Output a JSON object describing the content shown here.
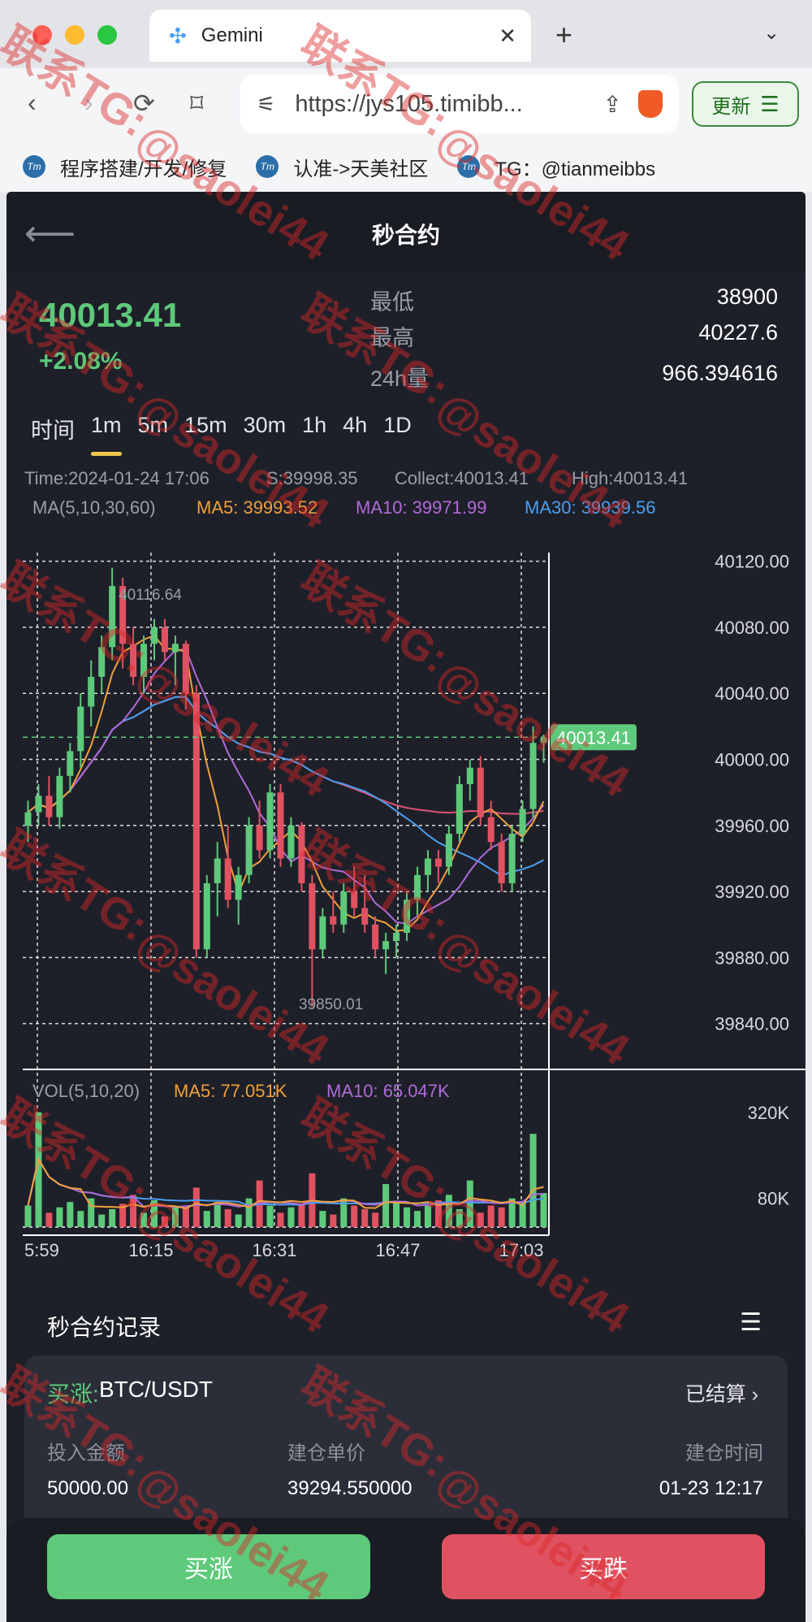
{
  "browser": {
    "tab_title": "Gemini",
    "url": "https://jys105.timibb...",
    "update_label": "更新",
    "bookmarks": [
      "程序搭建/开发/修复",
      "认准->天美社区",
      "TG：@tianmeibbs"
    ]
  },
  "header": {
    "title": "秒合约"
  },
  "ticker": {
    "price": "40013.41",
    "change": "+2.08%",
    "stats": [
      {
        "label": "最低",
        "value": "38900"
      },
      {
        "label": "最高",
        "value": "40227.6"
      },
      {
        "label": "24h量",
        "value": "966.394616"
      }
    ]
  },
  "intervals": [
    "时间",
    "1m",
    "5m",
    "15m",
    "30m",
    "1h",
    "4h",
    "1D"
  ],
  "active_interval": "1m",
  "chart_info": {
    "time": "Time:2024-01-24 17:06",
    "s": "S:39998.35",
    "collect": "Collect:40013.41",
    "high": "High:40013.41",
    "ma_label": "MA(5,10,30,60)",
    "ma5": "MA5: 39993.52",
    "ma10": "MA10: 39971.99",
    "ma30": "MA30: 39939.56",
    "max_label": "40116.64",
    "min_label": "39850.01",
    "current_tag": "40013.41",
    "vol_label": "VOL(5,10,20)",
    "vol_ma5": "MA5: 77.051K",
    "vol_ma10": "MA10: 65.047K"
  },
  "colors": {
    "up": "#5ec97a",
    "down": "#e05261",
    "ma5": "#f0a03c",
    "ma10": "#b06ad8",
    "ma30": "#4a9ef0",
    "ma60": "#e0507a"
  },
  "chart_data": {
    "type": "candlestick",
    "y_ticks": [
      "40120.00",
      "40080.00",
      "40040.00",
      "40000.00",
      "39960.00",
      "39920.00",
      "39880.00",
      "39840.00"
    ],
    "ylim": [
      39830,
      40140
    ],
    "x_ticks": [
      "5:59",
      "16:15",
      "16:31",
      "16:47",
      "17:03"
    ],
    "vol_ticks": [
      "320K",
      "80K"
    ],
    "ohlc": [
      [
        39960,
        39975,
        39950,
        39968
      ],
      [
        39968,
        39985,
        39960,
        39978
      ],
      [
        39978,
        39990,
        39960,
        39965
      ],
      [
        39965,
        39995,
        39958,
        39990
      ],
      [
        39990,
        40010,
        39980,
        40005
      ],
      [
        40005,
        40040,
        39995,
        40032
      ],
      [
        40032,
        40060,
        40020,
        40050
      ],
      [
        40050,
        40075,
        40040,
        40068
      ],
      [
        40068,
        40116,
        40060,
        40105
      ],
      [
        40105,
        40110,
        40055,
        40070
      ],
      [
        40070,
        40080,
        40045,
        40050
      ],
      [
        40050,
        40075,
        40040,
        40070
      ],
      [
        40070,
        40085,
        40060,
        40080
      ],
      [
        40080,
        40085,
        40060,
        40065
      ],
      [
        40065,
        40075,
        40045,
        40070
      ],
      [
        40070,
        40072,
        40030,
        40040
      ],
      [
        40040,
        40045,
        39880,
        39885
      ],
      [
        39885,
        39930,
        39880,
        39925
      ],
      [
        39925,
        39950,
        39905,
        39940
      ],
      [
        39940,
        39960,
        39910,
        39915
      ],
      [
        39915,
        39935,
        39900,
        39930
      ],
      [
        39930,
        39965,
        39925,
        39960
      ],
      [
        39960,
        39975,
        39940,
        39945
      ],
      [
        39945,
        39985,
        39940,
        39980
      ],
      [
        39980,
        39985,
        39935,
        39940
      ],
      [
        39940,
        39965,
        39935,
        39960
      ],
      [
        39960,
        39962,
        39920,
        39925
      ],
      [
        39925,
        39930,
        39850,
        39885
      ],
      [
        39885,
        39910,
        39880,
        39905
      ],
      [
        39905,
        39920,
        39895,
        39900
      ],
      [
        39900,
        39925,
        39895,
        39920
      ],
      [
        39920,
        39935,
        39905,
        39910
      ],
      [
        39910,
        39930,
        39895,
        39900
      ],
      [
        39900,
        39905,
        39880,
        39885
      ],
      [
        39885,
        39895,
        39870,
        39890
      ],
      [
        39890,
        39900,
        39880,
        39895
      ],
      [
        39895,
        39920,
        39890,
        39915
      ],
      [
        39915,
        39935,
        39905,
        39930
      ],
      [
        39930,
        39945,
        39920,
        39940
      ],
      [
        39940,
        39945,
        39925,
        39935
      ],
      [
        39935,
        39960,
        39930,
        39955
      ],
      [
        39955,
        39990,
        39950,
        39985
      ],
      [
        39985,
        40000,
        39975,
        39995
      ],
      [
        39995,
        40002,
        39960,
        39965
      ],
      [
        39965,
        39975,
        39945,
        39950
      ],
      [
        39950,
        39955,
        39920,
        39925
      ],
      [
        39925,
        39960,
        39920,
        39955
      ],
      [
        39955,
        39975,
        39950,
        39970
      ],
      [
        39970,
        40020,
        39965,
        40010
      ],
      [
        40010,
        40015,
        39998,
        40013
      ]
    ],
    "volume": [
      60,
      320,
      40,
      55,
      70,
      45,
      80,
      35,
      50,
      65,
      90,
      40,
      75,
      30,
      55,
      60,
      110,
      45,
      70,
      50,
      35,
      80,
      130,
      60,
      40,
      55,
      65,
      150,
      45,
      35,
      80,
      60,
      50,
      40,
      120,
      70,
      55,
      45,
      60,
      75,
      90,
      50,
      130,
      40,
      60,
      55,
      80,
      70,
      260,
      95
    ]
  },
  "records": {
    "title": "秒合约记录",
    "side": "买涨:",
    "pair": "BTC/USDT",
    "status": "已结算",
    "labels": [
      "投入金额",
      "建仓单价",
      "建仓时间"
    ],
    "values": [
      "50000.00",
      "39294.550000",
      "01-23 12:17"
    ]
  },
  "actions": {
    "up": "买涨",
    "down": "买跌"
  },
  "watermark": [
    "联系TG:",
    "@saolei44"
  ]
}
